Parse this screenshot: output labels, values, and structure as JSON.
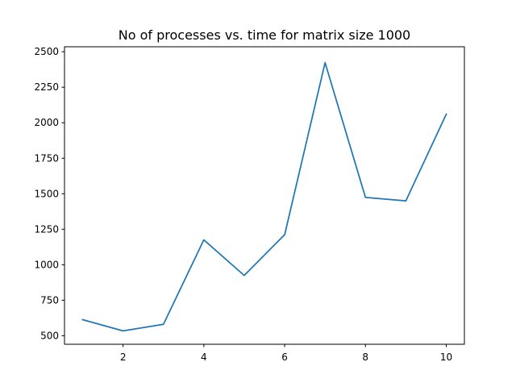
{
  "chart_data": {
    "type": "line",
    "title": "No of processes vs. time for matrix size 1000",
    "xlabel": "",
    "ylabel": "",
    "x": [
      1,
      2,
      3,
      4,
      5,
      6,
      7,
      8,
      9,
      10
    ],
    "series": [
      {
        "values": [
          613,
          534,
          580,
          1175,
          925,
          1212,
          2423,
          1474,
          1450,
          2060
        ],
        "color": "#1f77b4"
      }
    ],
    "xlim": [
      0.55,
      10.45
    ],
    "ylim": [
      440,
      2535
    ],
    "xticks": [
      2,
      4,
      6,
      8,
      10
    ],
    "xtick_labels": [
      "2",
      "4",
      "6",
      "8",
      "10"
    ],
    "yticks": [
      500,
      750,
      1000,
      1250,
      1500,
      1750,
      2000,
      2250,
      2500
    ],
    "ytick_labels": [
      "500",
      "750",
      "1000",
      "1250",
      "1500",
      "1750",
      "2000",
      "2250",
      "2500"
    ],
    "grid": false,
    "legend": "none"
  }
}
